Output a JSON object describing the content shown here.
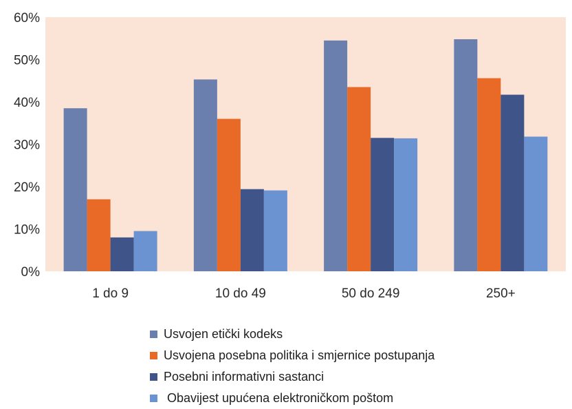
{
  "chart_data": {
    "type": "bar",
    "categories": [
      "1 do 9",
      "10 do 49",
      "50 do 249",
      "250+"
    ],
    "series": [
      {
        "name": "Usvojen etički kodeks",
        "color": "#6a7fad",
        "values": [
          38.5,
          45.3,
          54.5,
          54.8
        ]
      },
      {
        "name": "Usvojena posebna politika i smjernice postupanja",
        "color": "#e96a26",
        "values": [
          17.0,
          36.0,
          43.5,
          45.6
        ]
      },
      {
        "name": "Posebni informativni sastanci",
        "color": "#3f5488",
        "values": [
          8.0,
          19.4,
          31.5,
          41.7
        ]
      },
      {
        "name": " Obavijest upućena elektroničkom poštom",
        "color": "#6b93d1",
        "values": [
          9.5,
          19.1,
          31.4,
          31.8
        ]
      }
    ],
    "yticks": [
      "0%",
      "10%",
      "20%",
      "30%",
      "40%",
      "50%",
      "60%"
    ],
    "ylim": [
      0,
      60
    ],
    "plot_background": "#fbe3d6",
    "legend_position": "bottom"
  }
}
